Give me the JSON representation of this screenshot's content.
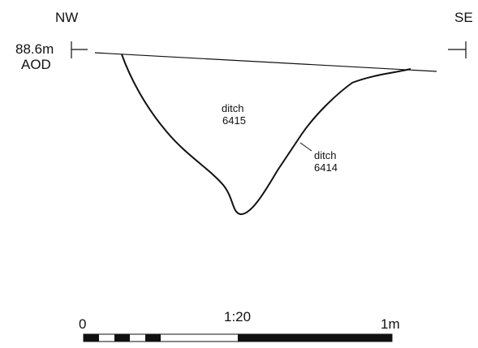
{
  "section": {
    "left_orientation": "NW",
    "right_orientation": "SE",
    "datum_level": "88.6m",
    "datum_ref": "AOD",
    "fills": [
      {
        "name": "ditch",
        "number": "6415"
      },
      {
        "name": "ditch",
        "number": "6414"
      }
    ]
  },
  "scale_bar": {
    "start_label": "0",
    "ratio_label": "1:20",
    "end_label": "1m"
  },
  "colors": {
    "ink": "#111111",
    "paper": "#ffffff"
  }
}
